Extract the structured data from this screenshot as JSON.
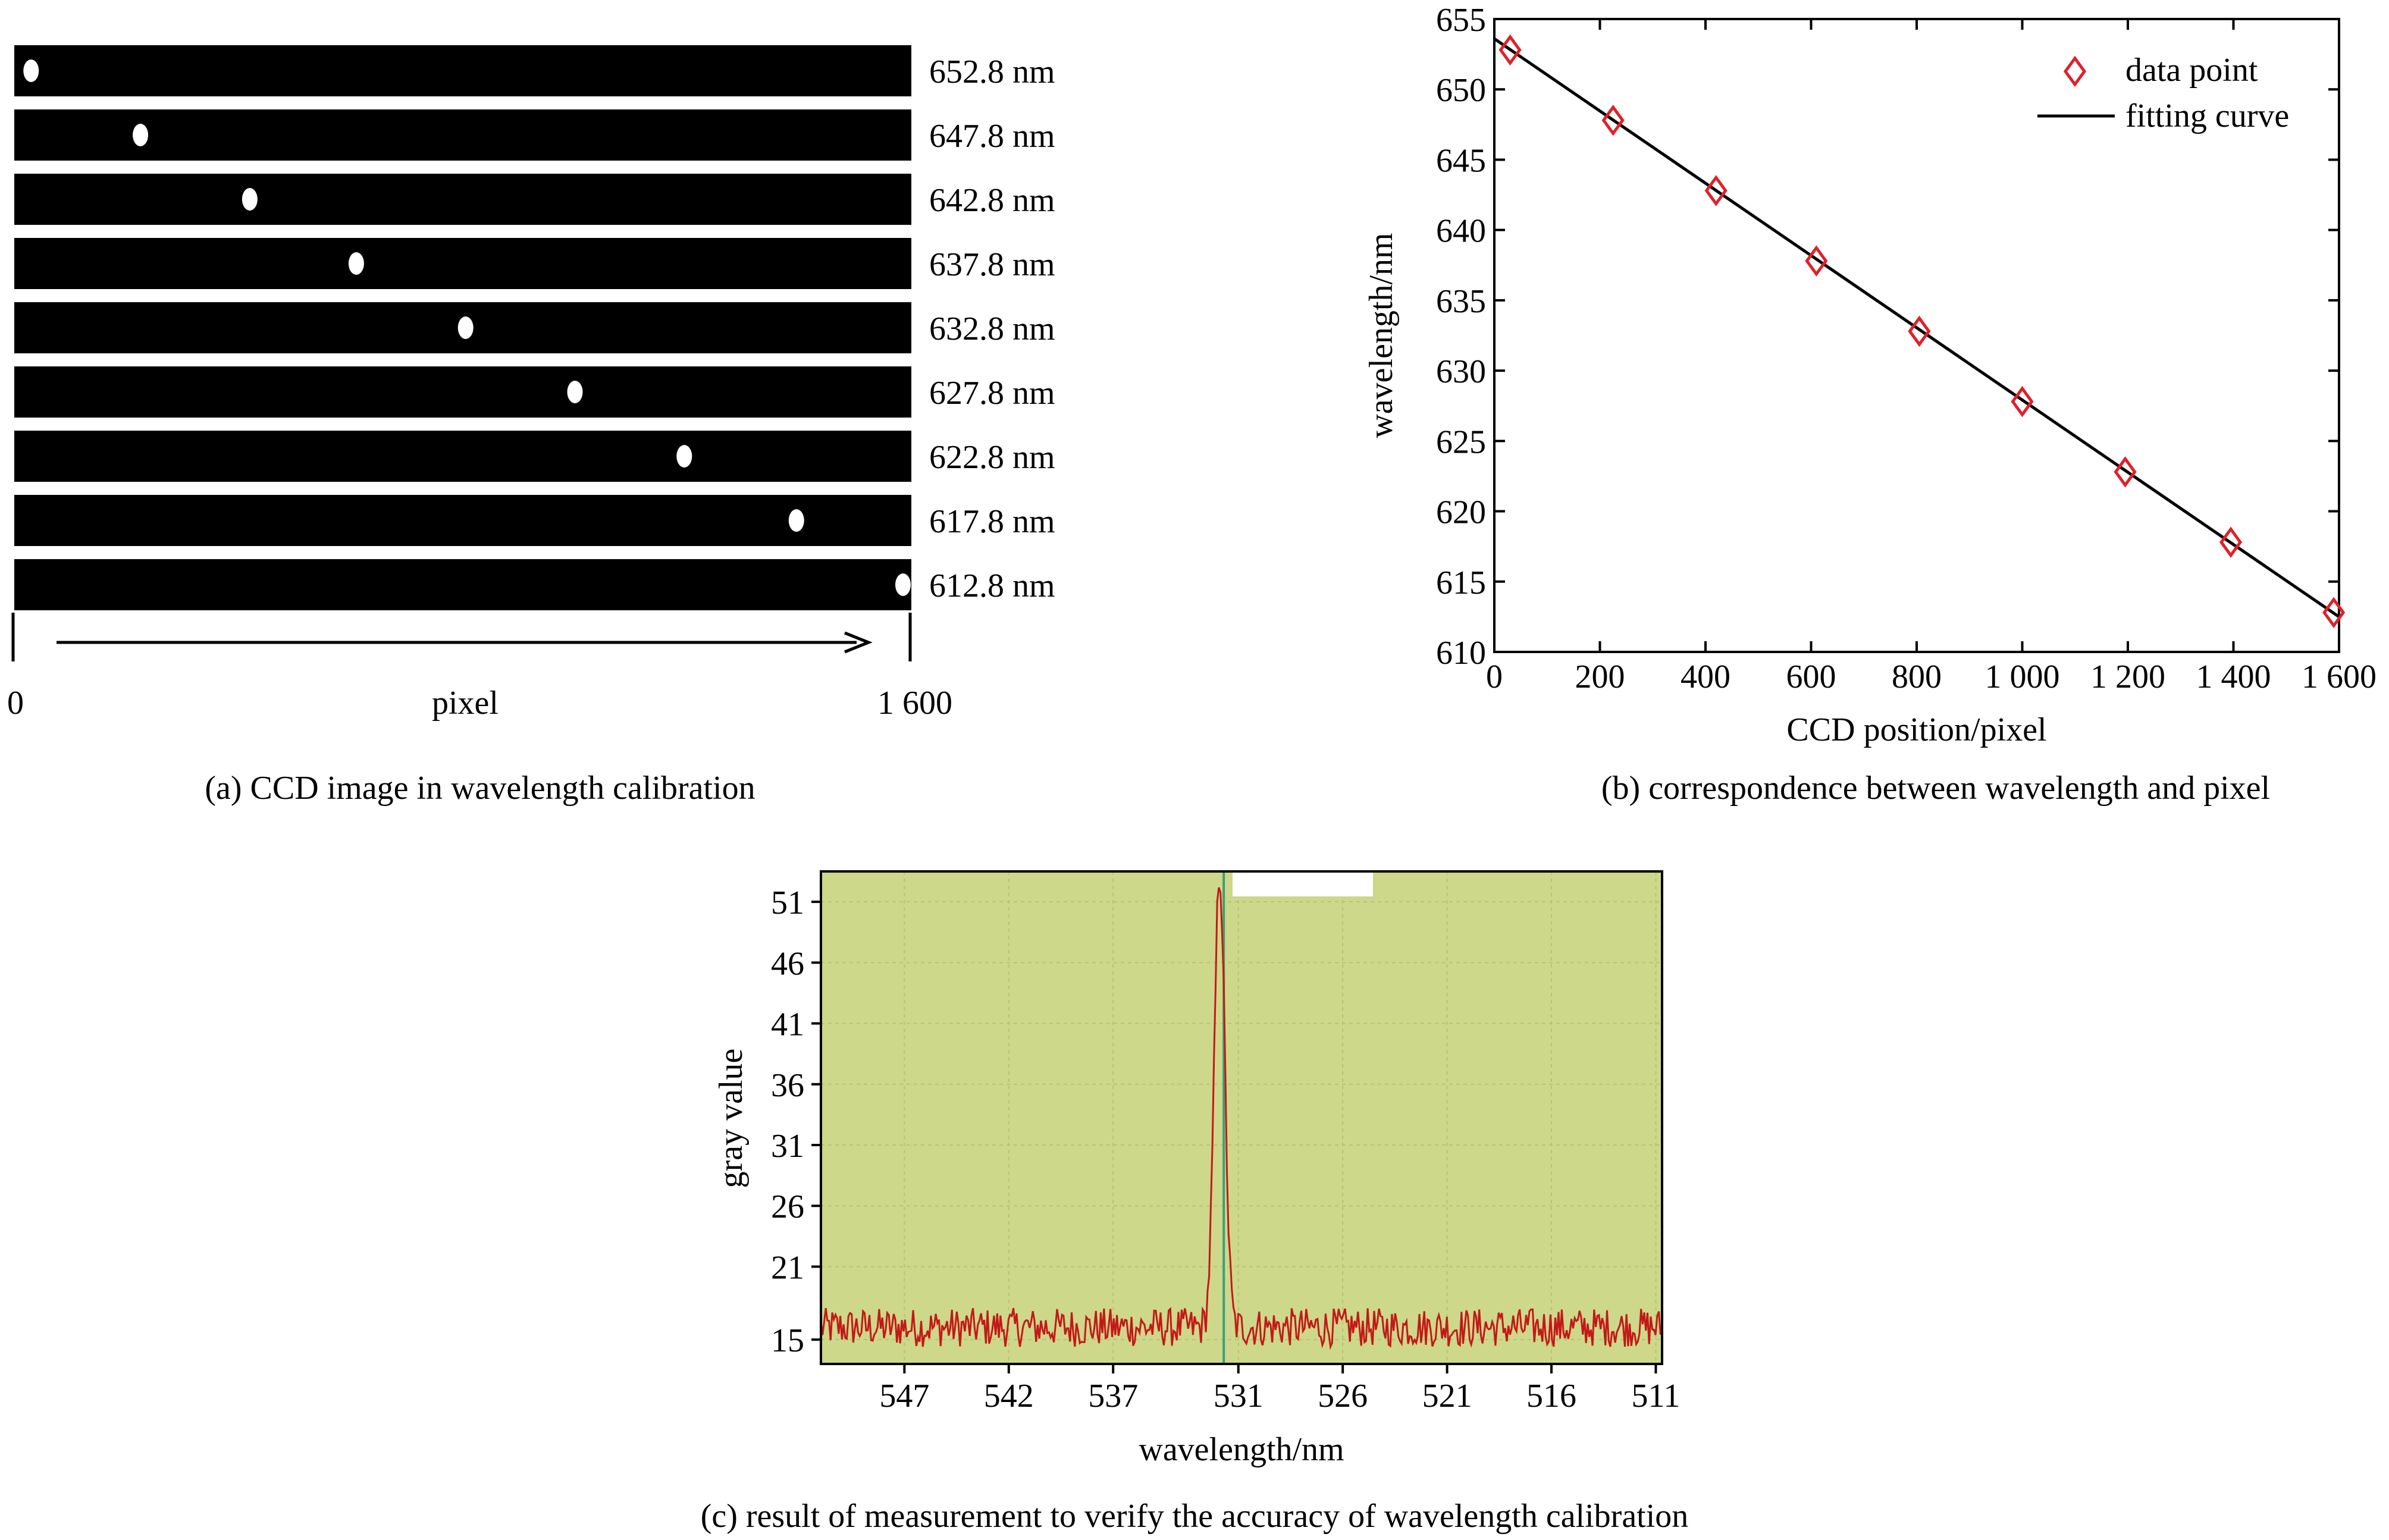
{
  "panel_a": {
    "caption": "(a) CCD image in wavelength calibration",
    "axis_label": "pixel",
    "axis_start": "0",
    "axis_end": "1 600",
    "pixel_range": [
      0,
      1600
    ],
    "strips": [
      {
        "label": "652.8 nm",
        "spot_pixel": 30
      },
      {
        "label": "647.8 nm",
        "spot_pixel": 225
      },
      {
        "label": "642.8 nm",
        "spot_pixel": 420
      },
      {
        "label": "637.8 nm",
        "spot_pixel": 610
      },
      {
        "label": "632.8 nm",
        "spot_pixel": 805
      },
      {
        "label": "627.8 nm",
        "spot_pixel": 1000
      },
      {
        "label": "622.8 nm",
        "spot_pixel": 1195
      },
      {
        "label": "617.8 nm",
        "spot_pixel": 1395
      },
      {
        "label": "612.8 nm",
        "spot_pixel": 1590
      }
    ]
  },
  "chart_data": [
    {
      "type": "scatter",
      "caption": "(b) correspondence between wavelength and pixel",
      "xlabel": "CCD position/pixel",
      "ylabel": "wavelength/nm",
      "xlim": [
        0,
        1600
      ],
      "ylim": [
        610,
        655
      ],
      "xticks": [
        0,
        200,
        400,
        600,
        800,
        1000,
        1200,
        1400,
        1600
      ],
      "xtick_labels": [
        "0",
        "200",
        "400",
        "600",
        "800",
        "1 000",
        "1 200",
        "1 400",
        "1 600"
      ],
      "yticks": [
        610,
        615,
        620,
        625,
        630,
        635,
        640,
        645,
        650,
        655
      ],
      "ytick_labels": [
        "610",
        "615",
        "620",
        "625",
        "630",
        "635",
        "640",
        "645",
        "650",
        "655"
      ],
      "legend_placement": "top-right",
      "grid": false,
      "series": [
        {
          "name": "data point",
          "marker": "diamond",
          "color": "#e0202a",
          "x": [
            30,
            225,
            420,
            610,
            805,
            1000,
            1195,
            1395,
            1590
          ],
          "y": [
            652.8,
            647.8,
            642.8,
            637.8,
            632.8,
            627.8,
            622.8,
            617.8,
            612.8
          ]
        },
        {
          "name": "fitting curve",
          "type": "line",
          "color": "#000000",
          "x": [
            0,
            1600
          ],
          "y": [
            653.6,
            612.5
          ]
        }
      ]
    },
    {
      "type": "line",
      "caption": "(c) result of measurement to verify the accuracy of wavelength calibration",
      "xlabel": "wavelength/nm",
      "ylabel": "gray value",
      "xlim": [
        551,
        510.7
      ],
      "ylim": [
        13,
        53.5
      ],
      "xticks": [
        547,
        542,
        537,
        531,
        526,
        521,
        516,
        511
      ],
      "xtick_labels": [
        "547",
        "542",
        "537",
        "531",
        "526",
        "521",
        "516",
        "511"
      ],
      "yticks": [
        15,
        21,
        26,
        31,
        36,
        41,
        46,
        51
      ],
      "ytick_labels": [
        "15",
        "21",
        "26",
        "31",
        "36",
        "41",
        "46",
        "51"
      ],
      "grid": true,
      "background_color": "#cdd88a",
      "marker_line_x": 531.7,
      "marker_line_color": "#3aa07a",
      "series": [
        {
          "color": "#c41818",
          "baseline": 16,
          "noise_amplitude": 1.6,
          "peak": {
            "x": 531.9,
            "y": 53.5,
            "width": 0.35
          }
        }
      ]
    }
  ]
}
